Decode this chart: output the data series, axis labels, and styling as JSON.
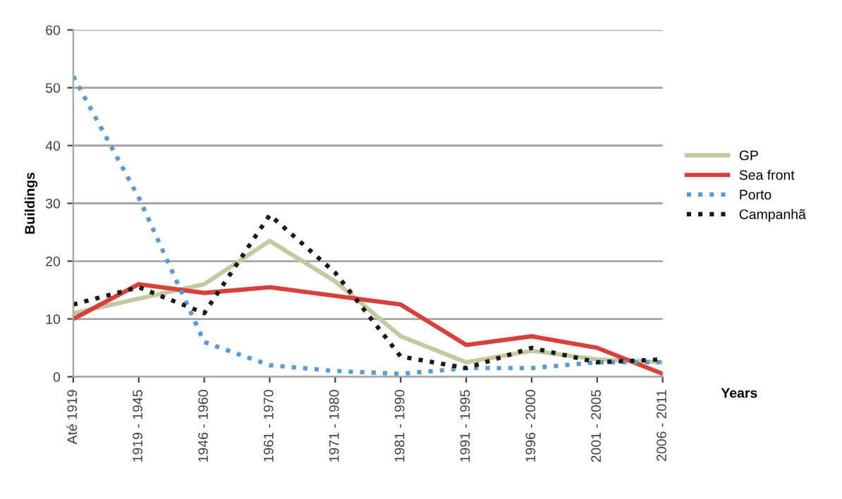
{
  "chart_data": {
    "type": "line",
    "xlabel": "Years",
    "ylabel": "Buildings",
    "categories": [
      "Até 1919",
      "1919 - 1945",
      "1946 - 1960",
      "1961 - 1970",
      "1971 - 1980",
      "1981 - 1990",
      "1991 - 1995",
      "1996 - 2000",
      "2001 - 2005",
      "2006 - 2011"
    ],
    "series": [
      {
        "name": "GP",
        "color": "#c4c9a0",
        "line_style": "solid",
        "values": [
          11,
          13.5,
          16,
          23.5,
          16.5,
          7,
          2.5,
          4.5,
          3,
          2.5
        ]
      },
      {
        "name": "Sea front",
        "color": "#d9403b",
        "line_style": "solid",
        "values": [
          10,
          16,
          14.5,
          15.5,
          14,
          12.5,
          5.5,
          7,
          5,
          0.5
        ]
      },
      {
        "name": "Porto",
        "color": "#5b9bd5",
        "line_style": "dotted",
        "values": [
          52,
          31,
          6,
          2,
          1,
          0.5,
          1.5,
          1.5,
          2.5,
          2.5
        ]
      },
      {
        "name": "Campanhã",
        "color": "#1a1a1a",
        "line_style": "dotted",
        "values": [
          12.5,
          15.5,
          11,
          28,
          18,
          3.5,
          1.5,
          5,
          2.5,
          3
        ]
      }
    ],
    "ylim": [
      0,
      60
    ],
    "yticks": [
      0,
      10,
      20,
      30,
      40,
      50,
      60
    ],
    "grid": "y",
    "legend": "right",
    "marker": "none"
  }
}
